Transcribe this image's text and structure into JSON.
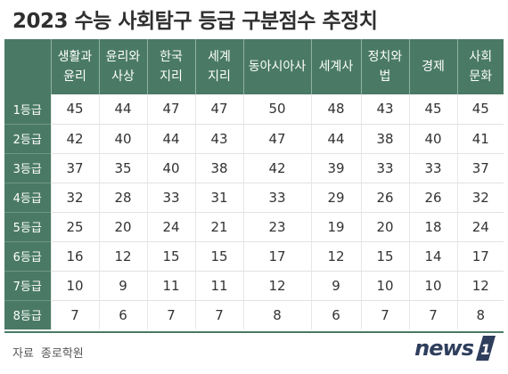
{
  "title": "2023 수능 사회탐구 등급 구분점수 추정치",
  "table": {
    "columns": [
      {
        "line1": "생활과",
        "line2": "윤리"
      },
      {
        "line1": "윤리와",
        "line2": "사상"
      },
      {
        "line1": "한국",
        "line2": "지리"
      },
      {
        "line1": "세계",
        "line2": "지리"
      },
      {
        "line1": "동아시아사",
        "line2": ""
      },
      {
        "line1": "세계사",
        "line2": ""
      },
      {
        "line1": "정치와",
        "line2": "법"
      },
      {
        "line1": "경제",
        "line2": ""
      },
      {
        "line1": "사회",
        "line2": "문화"
      }
    ],
    "rows": [
      {
        "label": "1등급",
        "values": [
          "45",
          "44",
          "47",
          "47",
          "50",
          "48",
          "43",
          "45",
          "45"
        ]
      },
      {
        "label": "2등급",
        "values": [
          "42",
          "40",
          "44",
          "43",
          "47",
          "44",
          "38",
          "40",
          "41"
        ]
      },
      {
        "label": "3등급",
        "values": [
          "37",
          "35",
          "40",
          "38",
          "42",
          "39",
          "33",
          "33",
          "37"
        ]
      },
      {
        "label": "4등급",
        "values": [
          "32",
          "28",
          "33",
          "31",
          "33",
          "29",
          "26",
          "26",
          "32"
        ]
      },
      {
        "label": "5등급",
        "values": [
          "25",
          "20",
          "24",
          "21",
          "23",
          "19",
          "20",
          "18",
          "24"
        ]
      },
      {
        "label": "6등급",
        "values": [
          "16",
          "12",
          "15",
          "15",
          "17",
          "12",
          "15",
          "14",
          "17"
        ]
      },
      {
        "label": "7등급",
        "values": [
          "10",
          "9",
          "11",
          "11",
          "12",
          "9",
          "10",
          "10",
          "12"
        ]
      },
      {
        "label": "8등급",
        "values": [
          "7",
          "6",
          "7",
          "7",
          "8",
          "6",
          "7",
          "7",
          "8"
        ]
      }
    ]
  },
  "source": {
    "label": "자료",
    "value": "종로학원"
  },
  "logo": {
    "text": "news",
    "badge": "1"
  },
  "colors": {
    "header_bg": "#4a7a66",
    "text": "#333333",
    "logo": "#2e3e5c"
  }
}
